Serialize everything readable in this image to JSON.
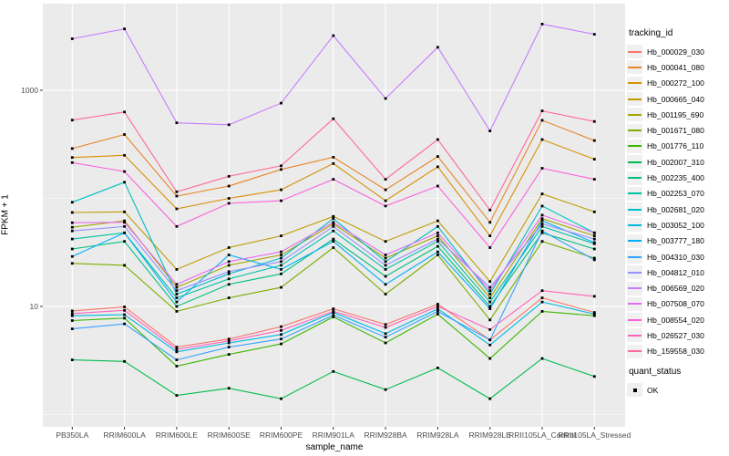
{
  "chart_data": {
    "type": "line",
    "title": "",
    "xlabel": "sample_name",
    "ylabel": "FPKM + 1",
    "y_scale": "log10",
    "ylim": [
      0.75,
      6500
    ],
    "y_major_ticks": [
      {
        "label": "10",
        "value": 10
      },
      {
        "label": "1000",
        "value": 1000
      }
    ],
    "y_minor_gridlines": [
      1,
      100
    ],
    "grid": "on",
    "legend_position": "right",
    "legend_title": "tracking_id",
    "legend2_title": "quant_status",
    "legend2_items": [
      {
        "label": "OK",
        "marker": "black-square"
      }
    ],
    "panel_bg": "#EBEBEB",
    "grid_color": "#FFFFFF",
    "point_color": "#000000",
    "categories": [
      "PB350LA",
      "RRIM600LA",
      "RRIM600LE",
      "RRIM600SE",
      "RRIM600PE",
      "RRIM901LA",
      "RRIM928BA",
      "RRIM928LA",
      "RRIM928LE",
      "RRII105LA_Control",
      "RRII105LA_Stressed"
    ],
    "series": [
      {
        "name": "Hb_000029_030",
        "color": "#F8766D",
        "values": [
          9.1,
          9.9,
          4.2,
          5.0,
          6.5,
          9.5,
          6.8,
          10.5,
          4.9,
          12,
          8.8
        ]
      },
      {
        "name": "Hb_000041_080",
        "color": "#E88526",
        "values": [
          289,
          390,
          105,
          130,
          185,
          240,
          120,
          244,
          60,
          528,
          343
        ]
      },
      {
        "name": "Hb_000272_100",
        "color": "#D89000",
        "values": [
          239,
          250,
          80,
          100,
          120,
          210,
          95,
          196,
          45,
          350,
          230
        ]
      },
      {
        "name": "Hb_000665_040",
        "color": "#C09B00",
        "values": [
          74,
          75,
          22,
          35,
          45,
          68,
          40,
          62,
          17,
          110,
          75
        ]
      },
      {
        "name": "Hb_001195_690",
        "color": "#A3A500",
        "values": [
          54,
          62,
          15,
          24,
          30,
          58,
          28,
          45,
          12,
          65,
          45
        ]
      },
      {
        "name": "Hb_001671_080",
        "color": "#7CAE00",
        "values": [
          25,
          24,
          9,
          12,
          15,
          35,
          13,
          30,
          7.5,
          40,
          28
        ]
      },
      {
        "name": "Hb_001776_110",
        "color": "#39B600",
        "values": [
          7.4,
          7.8,
          2.8,
          3.6,
          4.5,
          8.0,
          4.6,
          8.5,
          3.3,
          9.0,
          8.2
        ]
      },
      {
        "name": "Hb_002007_310",
        "color": "#00BB4E",
        "values": [
          3.2,
          3.1,
          1.5,
          1.75,
          1.4,
          2.5,
          1.7,
          2.7,
          1.4,
          3.3,
          2.25
        ]
      },
      {
        "name": "Hb_002235_400",
        "color": "#00BF7D",
        "values": [
          34,
          40,
          10,
          16,
          20,
          42,
          19,
          36,
          10,
          48,
          34
        ]
      },
      {
        "name": "Hb_002253_070",
        "color": "#00C1A3",
        "values": [
          42,
          48,
          12,
          18,
          24,
          50,
          22,
          40,
          11,
          55,
          38
        ]
      },
      {
        "name": "Hb_002681_020",
        "color": "#00BFC4",
        "values": [
          92,
          141,
          13,
          20,
          28,
          65,
          26,
          55,
          13,
          85,
          48
        ]
      },
      {
        "name": "Hb_003052_100",
        "color": "#00BAE0",
        "values": [
          8.2,
          8.4,
          3.8,
          4.6,
          5.5,
          8.8,
          5.6,
          9.5,
          4.4,
          11,
          8.5
        ]
      },
      {
        "name": "Hb_003777_180",
        "color": "#00B0F6",
        "values": [
          29,
          48,
          11,
          30,
          22,
          40,
          16,
          32,
          9.5,
          62,
          39
        ]
      },
      {
        "name": "Hb_004310_030",
        "color": "#35A2FF",
        "values": [
          6.2,
          6.9,
          3.2,
          4.2,
          5.0,
          8.3,
          5.2,
          9.0,
          4.9,
          50,
          27
        ]
      },
      {
        "name": "Hb_004812_010",
        "color": "#9590FF",
        "values": [
          50,
          55,
          14,
          21,
          26,
          55,
          24,
          42,
          15,
          58,
          42
        ]
      },
      {
        "name": "Hb_006569_020",
        "color": "#C77CFF",
        "values": [
          3000,
          3700,
          500,
          480,
          760,
          3200,
          840,
          2500,
          420,
          4100,
          3300
        ]
      },
      {
        "name": "Hb_007508_070",
        "color": "#E76BF3",
        "values": [
          59.5,
          60,
          16,
          26,
          32,
          60,
          30,
          48,
          14,
          70,
          48
        ]
      },
      {
        "name": "Hb_008554_020",
        "color": "#FA62DB",
        "values": [
          214,
          177,
          55,
          90,
          95,
          150,
          85,
          130,
          35,
          190,
          150
        ]
      },
      {
        "name": "Hb_026527_030",
        "color": "#FF62BC",
        "values": [
          8.6,
          9.2,
          4.0,
          4.8,
          6.0,
          9.0,
          6.4,
          10.0,
          6.1,
          14,
          12.4
        ]
      },
      {
        "name": "Hb_159558_030",
        "color": "#FF6A98",
        "values": [
          530,
          630,
          115,
          160,
          200,
          545,
          150,
          350,
          78,
          645,
          515
        ]
      }
    ]
  }
}
